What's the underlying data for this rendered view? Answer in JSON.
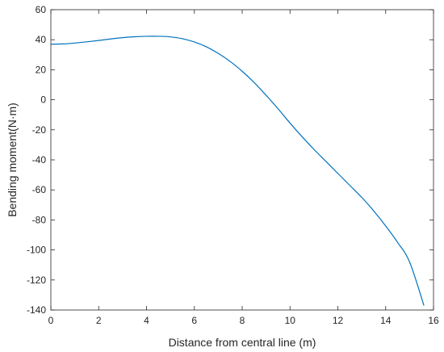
{
  "chart_data": {
    "type": "line",
    "xlabel": "Distance from central line (m)",
    "ylabel": "Bending moment(N·m)",
    "xlim": [
      0,
      16
    ],
    "ylim": [
      -140,
      60
    ],
    "xticks": [
      0,
      2,
      4,
      6,
      8,
      10,
      12,
      14,
      16
    ],
    "yticks": [
      -140,
      -120,
      -100,
      -80,
      -60,
      -40,
      -20,
      0,
      20,
      40,
      60
    ],
    "grid": false,
    "box": true,
    "series": [
      {
        "color": "#0072BD",
        "x": [
          0,
          0.5,
          1,
          1.5,
          2,
          2.5,
          3,
          3.5,
          4,
          4.5,
          5,
          5.5,
          6,
          6.5,
          7,
          7.5,
          8,
          8.5,
          9,
          9.5,
          10,
          10.5,
          11,
          11.5,
          12,
          12.5,
          13,
          13.5,
          14,
          14.5,
          15,
          15.6
        ],
        "y": [
          37,
          37.2,
          37.8,
          38.6,
          39.5,
          40.5,
          41.4,
          42.0,
          42.3,
          42.3,
          41.9,
          40.7,
          38.5,
          35.3,
          30.9,
          25.5,
          19.0,
          11.5,
          3.0,
          -6.0,
          -15.5,
          -24.5,
          -33.0,
          -41.0,
          -49.0,
          -57.0,
          -65.0,
          -74.0,
          -84.0,
          -95.0,
          -108.0,
          -137.0
        ]
      }
    ]
  }
}
